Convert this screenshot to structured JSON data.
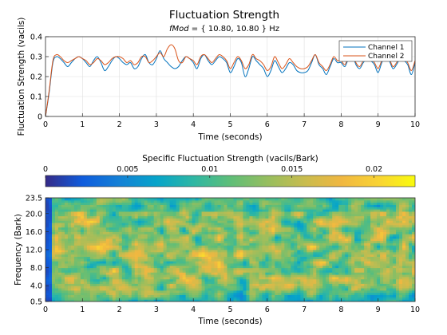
{
  "figure": {
    "title": "Fluctuation Strength",
    "subtitle_italic": "fMod",
    "subtitle_rest": " = { 10.80, 10.80 } Hz"
  },
  "chart_data": [
    {
      "type": "line",
      "ylabel": "Fluctuation Strength (vacils)",
      "xlabel": "Time (seconds)",
      "xlim": [
        0,
        10
      ],
      "ylim": [
        0,
        0.4
      ],
      "xticks": [
        "0",
        "1",
        "2",
        "3",
        "4",
        "5",
        "6",
        "7",
        "8",
        "9",
        "10"
      ],
      "yticks": [
        "0",
        "0.1",
        "0.2",
        "0.3",
        "0.4"
      ],
      "grid": true,
      "legend_position": "top-right",
      "colors": [
        "#0072BD",
        "#D95319"
      ],
      "series": [
        {
          "name": "Channel 1",
          "x": [
            0,
            0.1,
            0.2,
            0.3,
            0.4,
            0.5,
            0.6,
            0.7,
            0.8,
            0.9,
            1,
            1.1,
            1.2,
            1.3,
            1.4,
            1.5,
            1.6,
            1.7,
            1.8,
            1.9,
            2,
            2.1,
            2.2,
            2.3,
            2.4,
            2.5,
            2.6,
            2.7,
            2.8,
            2.9,
            3,
            3.1,
            3.2,
            3.3,
            3.4,
            3.5,
            3.6,
            3.7,
            3.8,
            3.9,
            4,
            4.1,
            4.2,
            4.3,
            4.4,
            4.5,
            4.6,
            4.7,
            4.8,
            4.9,
            5,
            5.1,
            5.2,
            5.3,
            5.4,
            5.5,
            5.6,
            5.7,
            5.8,
            5.9,
            6,
            6.1,
            6.2,
            6.3,
            6.4,
            6.5,
            6.6,
            6.7,
            6.8,
            6.9,
            7,
            7.1,
            7.2,
            7.3,
            7.4,
            7.5,
            7.6,
            7.7,
            7.8,
            7.9,
            8,
            8.1,
            8.2,
            8.3,
            8.4,
            8.5,
            8.6,
            8.7,
            8.8,
            8.9,
            9,
            9.1,
            9.2,
            9.3,
            9.4,
            9.5,
            9.6,
            9.7,
            9.8,
            9.9,
            10
          ],
          "y": [
            0,
            0.12,
            0.27,
            0.3,
            0.29,
            0.27,
            0.25,
            0.27,
            0.29,
            0.3,
            0.29,
            0.27,
            0.25,
            0.28,
            0.3,
            0.27,
            0.23,
            0.25,
            0.28,
            0.3,
            0.29,
            0.27,
            0.26,
            0.27,
            0.24,
            0.25,
            0.29,
            0.31,
            0.27,
            0.26,
            0.29,
            0.33,
            0.29,
            0.27,
            0.25,
            0.24,
            0.25,
            0.28,
            0.3,
            0.29,
            0.27,
            0.24,
            0.29,
            0.31,
            0.28,
            0.26,
            0.28,
            0.3,
            0.29,
            0.27,
            0.22,
            0.25,
            0.29,
            0.27,
            0.2,
            0.24,
            0.3,
            0.28,
            0.26,
            0.24,
            0.2,
            0.23,
            0.28,
            0.25,
            0.22,
            0.24,
            0.27,
            0.26,
            0.23,
            0.22,
            0.22,
            0.23,
            0.27,
            0.31,
            0.26,
            0.24,
            0.21,
            0.25,
            0.29,
            0.27,
            0.27,
            0.25,
            0.29,
            0.31,
            0.26,
            0.24,
            0.27,
            0.29,
            0.28,
            0.26,
            0.22,
            0.27,
            0.3,
            0.28,
            0.24,
            0.26,
            0.29,
            0.28,
            0.26,
            0.21,
            0.27
          ]
        },
        {
          "name": "Channel 2",
          "x": [
            0,
            0.1,
            0.2,
            0.3,
            0.4,
            0.5,
            0.6,
            0.7,
            0.8,
            0.9,
            1,
            1.1,
            1.2,
            1.3,
            1.4,
            1.5,
            1.6,
            1.7,
            1.8,
            1.9,
            2,
            2.1,
            2.2,
            2.3,
            2.4,
            2.5,
            2.6,
            2.7,
            2.8,
            2.9,
            3,
            3.1,
            3.2,
            3.3,
            3.4,
            3.5,
            3.6,
            3.7,
            3.8,
            3.9,
            4,
            4.1,
            4.2,
            4.3,
            4.4,
            4.5,
            4.6,
            4.7,
            4.8,
            4.9,
            5,
            5.1,
            5.2,
            5.3,
            5.4,
            5.5,
            5.6,
            5.7,
            5.8,
            5.9,
            6,
            6.1,
            6.2,
            6.3,
            6.4,
            6.5,
            6.6,
            6.7,
            6.8,
            6.9,
            7,
            7.1,
            7.2,
            7.3,
            7.4,
            7.5,
            7.6,
            7.7,
            7.8,
            7.9,
            8,
            8.1,
            8.2,
            8.3,
            8.4,
            8.5,
            8.6,
            8.7,
            8.8,
            8.9,
            9,
            9.1,
            9.2,
            9.3,
            9.4,
            9.5,
            9.6,
            9.7,
            9.8,
            9.9,
            10
          ],
          "y": [
            0,
            0.13,
            0.28,
            0.31,
            0.3,
            0.28,
            0.27,
            0.28,
            0.29,
            0.3,
            0.29,
            0.28,
            0.26,
            0.27,
            0.29,
            0.28,
            0.26,
            0.27,
            0.29,
            0.3,
            0.3,
            0.29,
            0.27,
            0.28,
            0.26,
            0.27,
            0.3,
            0.3,
            0.27,
            0.28,
            0.3,
            0.32,
            0.3,
            0.34,
            0.36,
            0.34,
            0.28,
            0.27,
            0.3,
            0.29,
            0.28,
            0.26,
            0.3,
            0.31,
            0.29,
            0.27,
            0.29,
            0.31,
            0.3,
            0.28,
            0.24,
            0.27,
            0.3,
            0.28,
            0.24,
            0.26,
            0.31,
            0.29,
            0.28,
            0.26,
            0.23,
            0.25,
            0.3,
            0.27,
            0.24,
            0.26,
            0.29,
            0.27,
            0.25,
            0.24,
            0.24,
            0.25,
            0.28,
            0.31,
            0.27,
            0.25,
            0.23,
            0.26,
            0.3,
            0.28,
            0.28,
            0.26,
            0.3,
            0.32,
            0.27,
            0.25,
            0.28,
            0.3,
            0.29,
            0.27,
            0.24,
            0.28,
            0.3,
            0.29,
            0.25,
            0.27,
            0.3,
            0.29,
            0.27,
            0.23,
            0.28
          ]
        }
      ]
    },
    {
      "type": "heatmap",
      "colorbar_label": "Specific Fluctuation Strength (vacils/Bark)",
      "colorbar_ticks": [
        "0",
        "0.005",
        "0.01",
        "0.015",
        "0.02"
      ],
      "colorbar_values": [
        0,
        0.005,
        0.01,
        0.015,
        0.02
      ],
      "clim": [
        0,
        0.0225
      ],
      "colormap": "parula",
      "ylabel": "Frequency (Bark)",
      "xlabel": "Time (seconds)",
      "xlim": [
        0,
        10
      ],
      "ylim": [
        0.5,
        23.5
      ],
      "xticks": [
        "0",
        "1",
        "2",
        "3",
        "4",
        "5",
        "6",
        "7",
        "8",
        "9",
        "10"
      ],
      "yticks": [
        "0.5",
        "4.0",
        "8.0",
        "12.0",
        "16.0",
        "20.0",
        "23.5"
      ],
      "ytick_values": [
        0.5,
        4,
        8,
        12,
        16,
        20,
        23.5
      ]
    }
  ]
}
